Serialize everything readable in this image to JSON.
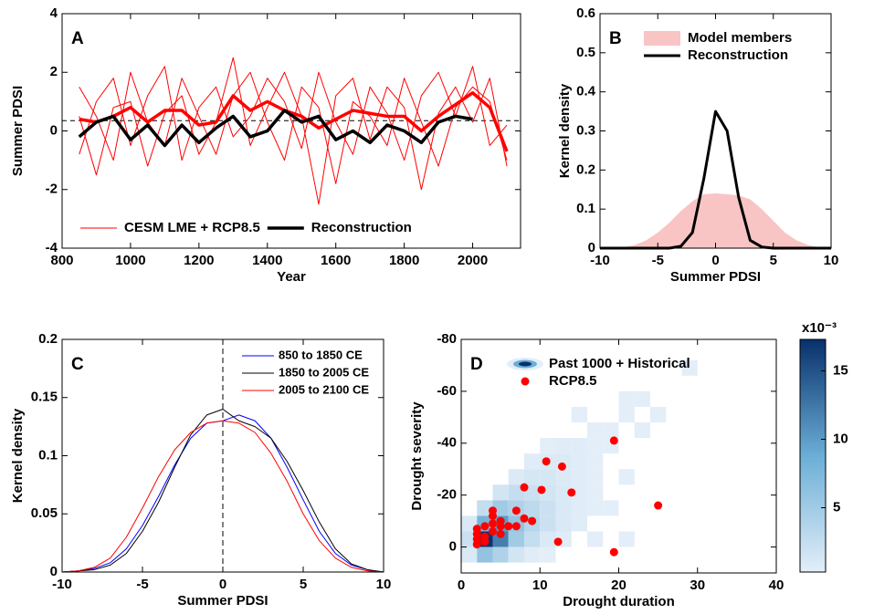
{
  "chart_data": [
    {
      "type": "line",
      "label": "A",
      "xlabel": "Year",
      "ylabel": "Summer PDSI",
      "xlim": [
        800,
        2140
      ],
      "xticks": [
        800,
        1000,
        1200,
        1400,
        1600,
        1800,
        2000
      ],
      "ylim": [
        -4,
        4
      ],
      "yticks": [
        -4,
        -2,
        0,
        2,
        4
      ],
      "hline": 0.35,
      "legend": "lower center",
      "x": [
        850,
        900,
        950,
        1000,
        1050,
        1100,
        1150,
        1200,
        1250,
        1300,
        1350,
        1400,
        1450,
        1500,
        1550,
        1600,
        1650,
        1700,
        1750,
        1800,
        1850,
        1900,
        1950,
        2000,
        2050,
        2100
      ],
      "series": [
        {
          "name": "CESM LME + RCP8.5",
          "color": "#ff0000",
          "width": 1,
          "values": [
            1.5,
            0.5,
            -1,
            2,
            0.3,
            -0.5,
            1.8,
            0.5,
            -0.8,
            1.2,
            2,
            0.3,
            -1,
            1.5,
            0.8,
            -1.8,
            1,
            0.5,
            -0.5,
            1.8,
            0.3,
            -1.2,
            0.8,
            1.5,
            1,
            -1
          ]
        },
        {
          "color": "#ff0000",
          "width": 1,
          "values": [
            -0.8,
            1,
            1.8,
            -0.5,
            1.2,
            2.2,
            -1,
            0.8,
            1.5,
            -0.2,
            0.5,
            1.8,
            1,
            -0.6,
            2,
            0.3,
            -0.8,
            1.5,
            0.6,
            -1,
            1.2,
            2,
            0.5,
            2.2,
            -0.5,
            0.2
          ]
        },
        {
          "color": "#ff0000",
          "width": 1,
          "values": [
            0.5,
            -1.5,
            0.8,
            1,
            -1.2,
            0.6,
            1.2,
            -0.8,
            0.3,
            2.5,
            -0.5,
            0.8,
            2,
            0.5,
            -2.5,
            1.2,
            1.8,
            -0.3,
            1.5,
            0.8,
            -2,
            0.6,
            1.5,
            0.3,
            1.8,
            -1.2
          ]
        },
        {
          "color": "#ff0000",
          "width": 3.5,
          "values": [
            0.4,
            0.3,
            0.5,
            0.8,
            0.3,
            0.7,
            0.7,
            0.2,
            0.3,
            1.2,
            0.7,
            1,
            0.7,
            0.5,
            0.1,
            0.4,
            0.7,
            0.6,
            0.5,
            0.5,
            0,
            0.5,
            0.9,
            1.3,
            0.8,
            -0.7
          ]
        },
        {
          "name": "Reconstruction",
          "color": "#000000",
          "width": 3.5,
          "values": [
            -0.2,
            0.3,
            0.5,
            -0.3,
            0.2,
            -0.5,
            0.2,
            -0.4,
            0.1,
            0.5,
            -0.2,
            0,
            0.7,
            0.3,
            0.5,
            -0.3,
            0,
            -0.4,
            0.2,
            0,
            -0.4,
            0.3,
            0.5,
            0.4,
            null,
            null
          ]
        }
      ]
    },
    {
      "type": "line",
      "label": "B",
      "xlabel": "Summer PDSI",
      "ylabel": "Kernel density",
      "xlim": [
        -10,
        10
      ],
      "xticks": [
        -10,
        -5,
        0,
        5,
        10
      ],
      "ylim": [
        0,
        0.6
      ],
      "yticks": [
        0,
        0.1,
        0.2,
        0.3,
        0.4,
        0.5,
        0.6
      ],
      "legend": "upper left",
      "x": [
        -10,
        -9,
        -8,
        -7,
        -6,
        -5,
        -4,
        -3,
        -2,
        -1,
        0,
        1,
        2,
        3,
        4,
        5,
        6,
        7,
        8,
        9,
        10
      ],
      "series": [
        {
          "name": "Model members",
          "color": "#f9c4c4",
          "style": "area",
          "values": [
            0,
            0,
            0.002,
            0.008,
            0.02,
            0.04,
            0.065,
            0.095,
            0.12,
            0.138,
            0.14,
            0.138,
            0.135,
            0.125,
            0.1,
            0.07,
            0.04,
            0.02,
            0.008,
            0.002,
            0
          ]
        },
        {
          "name": "Reconstruction",
          "color": "#000000",
          "width": 3,
          "values": [
            0,
            0,
            0,
            0,
            0,
            0,
            0,
            0.005,
            0.04,
            0.18,
            0.35,
            0.3,
            0.13,
            0.02,
            0.003,
            0,
            0,
            0,
            0,
            0,
            0
          ]
        }
      ]
    },
    {
      "type": "line",
      "label": "C",
      "xlabel": "Summer PDSI",
      "ylabel": "Kernel density",
      "xlim": [
        -10,
        10
      ],
      "xticks": [
        -10,
        -5,
        0,
        5,
        10
      ],
      "ylim": [
        0,
        0.2
      ],
      "yticks": [
        0,
        0.05,
        0.1,
        0.15,
        0.2
      ],
      "vline": 0,
      "legend": "upper right",
      "x": [
        -10,
        -9,
        -8,
        -7,
        -6,
        -5,
        -4,
        -3,
        -2,
        -1,
        0,
        1,
        2,
        3,
        4,
        5,
        6,
        7,
        8,
        9,
        10
      ],
      "series": [
        {
          "name": "850 to 1850 CE",
          "color": "#0000ff",
          "width": 1,
          "values": [
            0,
            0.001,
            0.003,
            0.008,
            0.02,
            0.04,
            0.065,
            0.092,
            0.115,
            0.128,
            0.13,
            0.135,
            0.13,
            0.115,
            0.09,
            0.062,
            0.035,
            0.016,
            0.006,
            0.002,
            0
          ]
        },
        {
          "name": "1850 to 2005 CE",
          "color": "#000000",
          "width": 1,
          "values": [
            0,
            0.001,
            0.002,
            0.006,
            0.016,
            0.035,
            0.06,
            0.09,
            0.118,
            0.135,
            0.14,
            0.13,
            0.125,
            0.115,
            0.095,
            0.07,
            0.043,
            0.02,
            0.007,
            0.002,
            0
          ]
        },
        {
          "name": "2005 to 2100 CE",
          "color": "#ff0000",
          "width": 1,
          "values": [
            0,
            0.001,
            0.004,
            0.012,
            0.03,
            0.055,
            0.082,
            0.105,
            0.12,
            0.128,
            0.13,
            0.128,
            0.12,
            0.102,
            0.078,
            0.05,
            0.027,
            0.012,
            0.004,
            0.001,
            0
          ]
        }
      ]
    },
    {
      "type": "scatter",
      "label": "D",
      "xlabel": "Drought duration",
      "ylabel": "Drought severity",
      "xlim": [
        0,
        40
      ],
      "xticks": [
        0,
        10,
        20,
        30,
        40
      ],
      "ylim": [
        10,
        -80
      ],
      "yticks": [
        -80,
        -60,
        -40,
        -20,
        0
      ],
      "legend": "upper left",
      "density": {
        "name": "Past 1000 + Historical",
        "xbins": [
          0,
          2,
          4,
          6,
          8,
          10,
          12,
          14,
          16,
          18,
          20,
          22,
          24,
          26,
          28,
          30,
          32
        ],
        "ybins": [
          -72,
          -66,
          -60,
          -54,
          -48,
          -42,
          -36,
          -30,
          -24,
          -18,
          -12,
          -6,
          0,
          6
        ],
        "z": [
          [
            null,
            null,
            null,
            null,
            null,
            null,
            null,
            null,
            null,
            null,
            null,
            null,
            null,
            null,
            0.3,
            null
          ],
          [
            null,
            null,
            null,
            null,
            null,
            null,
            null,
            null,
            null,
            null,
            null,
            null,
            null,
            null,
            null,
            null
          ],
          [
            null,
            null,
            null,
            null,
            null,
            null,
            null,
            null,
            null,
            null,
            0.3,
            0.3,
            null,
            null,
            null,
            null
          ],
          [
            null,
            null,
            null,
            null,
            null,
            null,
            null,
            0.3,
            null,
            null,
            0.3,
            null,
            0.3,
            null,
            null,
            null
          ],
          [
            null,
            null,
            null,
            null,
            null,
            null,
            null,
            null,
            0.3,
            0.3,
            null,
            0.3,
            null,
            null,
            null,
            null
          ],
          [
            null,
            null,
            null,
            null,
            null,
            0.3,
            0.5,
            0.5,
            0.3,
            0.3,
            null,
            null,
            null,
            null,
            null,
            null
          ],
          [
            null,
            null,
            null,
            null,
            0.5,
            0.8,
            0.8,
            0.5,
            0.3,
            null,
            null,
            null,
            null,
            null,
            null,
            null
          ],
          [
            null,
            null,
            null,
            0.8,
            1.2,
            1.2,
            0.8,
            0.5,
            0.3,
            null,
            0.3,
            null,
            null,
            null,
            null,
            null
          ],
          [
            null,
            null,
            1.5,
            2.5,
            2,
            1.5,
            1,
            0.5,
            0.3,
            null,
            null,
            null,
            null,
            null,
            null,
            null
          ],
          [
            null,
            2.5,
            5,
            4,
            3,
            2,
            1,
            0.5,
            0.3,
            0.3,
            null,
            null,
            null,
            null,
            null,
            null
          ],
          [
            1,
            8,
            10,
            6,
            3.5,
            2,
            1,
            0.5,
            null,
            null,
            null,
            null,
            null,
            null,
            null,
            null
          ],
          [
            2,
            17,
            12,
            5,
            2.5,
            1,
            0.5,
            null,
            0.3,
            null,
            0.3,
            null,
            null,
            null,
            null,
            null
          ],
          [
            1,
            6,
            4,
            1.5,
            0.5,
            0.3,
            null,
            null,
            null,
            null,
            null,
            null,
            null,
            null,
            null,
            null
          ]
        ],
        "colormap": [
          "#e3eef8",
          "#6baed6",
          "#08306b"
        ],
        "clim": [
          0.3,
          17.3
        ],
        "cticks": [
          5,
          10,
          15
        ],
        "colorbar_label": "x10⁻³"
      },
      "series": [
        {
          "name": "RCP8.5",
          "color": "#ff0000",
          "x": [
            2,
            2,
            2,
            2,
            3,
            3,
            3,
            4,
            4,
            4,
            4,
            5,
            5,
            5,
            6,
            7,
            7,
            8,
            8,
            9,
            10.8,
            10.2,
            12.3,
            12.8,
            14,
            19.4,
            19.4,
            25
          ],
          "values": [
            -1,
            -3,
            -5,
            -7,
            -2,
            -4,
            -8,
            -6,
            -9,
            -12,
            -14,
            -5,
            -8,
            -10,
            -8,
            -8,
            -14,
            -11,
            -23,
            -10,
            -33,
            -22,
            -2,
            -31,
            -21,
            -41,
            2,
            -16
          ]
        }
      ]
    }
  ]
}
